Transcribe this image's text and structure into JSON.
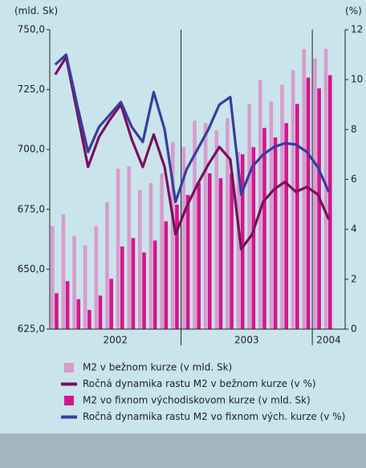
{
  "chart_data": {
    "type": "bar_line",
    "y_unit_label": "(mld. Sk)",
    "y2_unit_label": "(%)",
    "categories": [
      null,
      null,
      null,
      null,
      null,
      null,
      null,
      null,
      null,
      null,
      null,
      null,
      null,
      null,
      null,
      null,
      null,
      null,
      null,
      null,
      null,
      null,
      null,
      null,
      null,
      null
    ],
    "year_labels": [
      "2002",
      "2003",
      "2004"
    ],
    "ylim": [
      625,
      750
    ],
    "yticks": [
      {
        "value": 625,
        "label": "625,0"
      },
      {
        "value": 650,
        "label": "650,0"
      },
      {
        "value": 675,
        "label": "675,0"
      },
      {
        "value": 700,
        "label": "700,0"
      },
      {
        "value": 725,
        "label": "725,0"
      },
      {
        "value": 750,
        "label": "750,0"
      }
    ],
    "y2lim": [
      0,
      12
    ],
    "y2ticks": [
      0,
      2,
      4,
      6,
      8,
      10,
      12
    ],
    "series": [
      {
        "name": "M2 v bežnom kurze (v mld. Sk)",
        "kind": "bar",
        "color": "#d79ccc",
        "values": [
          668,
          673,
          664,
          660,
          668,
          678,
          692,
          693,
          683,
          686,
          690,
          703,
          701,
          712,
          711,
          708,
          713,
          699,
          719,
          729,
          720,
          727,
          733,
          742,
          738,
          742
        ]
      },
      {
        "name": "Ročná dynamika rastu M2 v bežnom kurze (v %)",
        "kind": "line",
        "axis": "y2",
        "color": "#7a0f5e",
        "values": [
          10.2,
          10.9,
          8.7,
          6.5,
          7.7,
          8.4,
          9.0,
          7.6,
          6.5,
          7.8,
          6.5,
          3.8,
          4.9,
          5.8,
          6.6,
          7.3,
          6.8,
          3.2,
          3.8,
          5.1,
          5.6,
          5.9,
          5.5,
          5.7,
          5.4,
          4.4
        ]
      },
      {
        "name": "M2 vo fixnom východiskovom kurze (v mld. Sk)",
        "kind": "bar",
        "color": "#d4168c",
        "values": [
          640,
          645,
          637.5,
          633,
          639,
          646,
          659.5,
          663,
          657,
          662,
          670,
          677,
          681,
          686,
          690,
          688,
          690,
          698,
          701,
          709,
          705,
          711,
          719,
          730,
          725.5,
          731
        ]
      },
      {
        "name": "Ročná dynamika rastu M2 vo fixnom vých. kurze (v %)",
        "kind": "line",
        "axis": "y2",
        "color": "#3a3c9e",
        "values": [
          10.6,
          11.0,
          9.0,
          7.1,
          8.1,
          8.6,
          9.1,
          8.1,
          7.5,
          9.5,
          8.0,
          5.1,
          6.4,
          7.2,
          8.0,
          9.0,
          9.3,
          5.4,
          6.5,
          7.0,
          7.3,
          7.45,
          7.4,
          7.1,
          6.5,
          5.5
        ]
      }
    ]
  }
}
